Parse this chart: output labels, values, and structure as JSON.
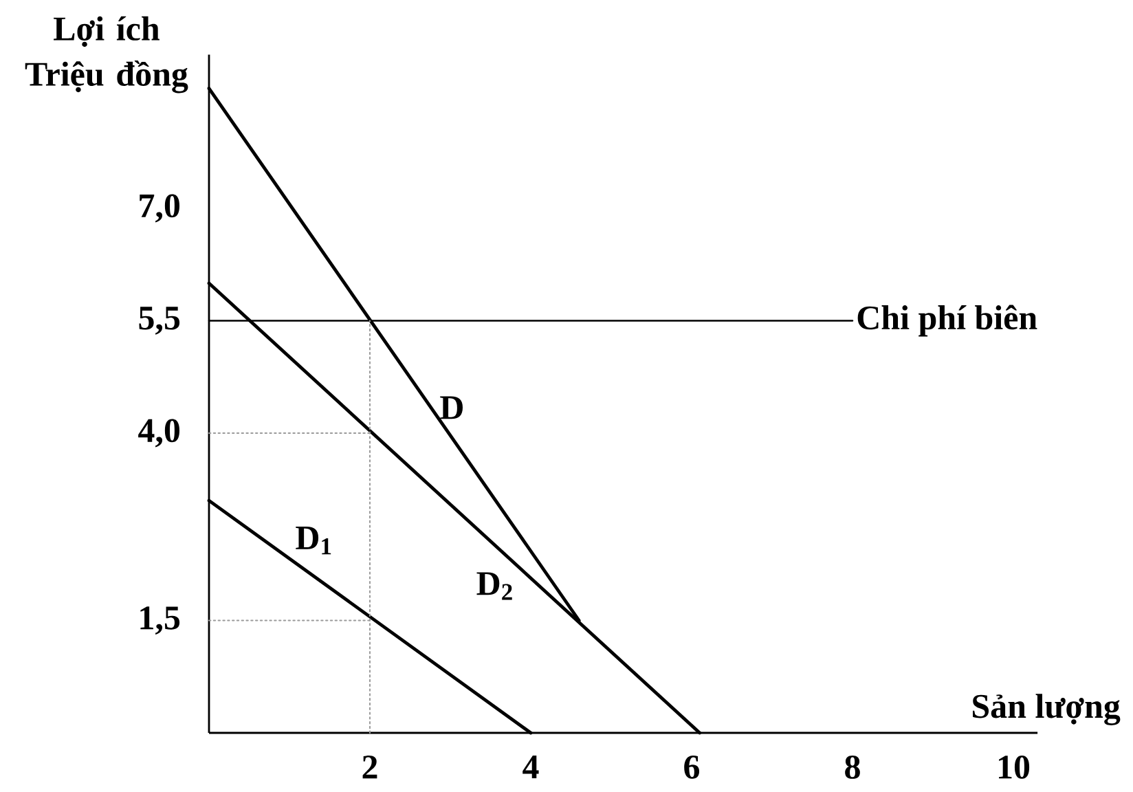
{
  "chart_data": {
    "type": "line",
    "xlabel": "Sản lượng",
    "ylabel": "Lợi ích Triệu đồng",
    "xlim": [
      0,
      10.3
    ],
    "ylim": [
      0,
      9.05
    ],
    "xticks": [
      2,
      4,
      6,
      8,
      10
    ],
    "yticks": [
      {
        "value": 1.5,
        "label": "1,5"
      },
      {
        "value": 4,
        "label": "4,0"
      },
      {
        "value": 5.5,
        "label": "5,5"
      },
      {
        "value": 7,
        "label": "7,0"
      }
    ],
    "series": [
      {
        "name": "D",
        "color": "#000000",
        "x": [
          0,
          4.6
        ],
        "values": [
          8.6,
          1.5
        ]
      },
      {
        "name": "D$_{1}$",
        "color": "#000000",
        "x": [
          0,
          4
        ],
        "values": [
          3.1,
          0
        ]
      },
      {
        "name": "D$_{2}$",
        "color": "#000000",
        "x": [
          0,
          6.1
        ],
        "values": [
          6,
          0
        ]
      },
      {
        "name": "Chi phí biên",
        "color": "#000000",
        "x": [
          0,
          8
        ],
        "values": [
          5.5,
          5.5
        ]
      },
      {
        "color": "#9a9a9a",
        "line_style": "dotted",
        "x": [
          2,
          2
        ],
        "values": [
          0,
          5.5
        ]
      },
      {
        "color": "#9a9a9a",
        "line_style": "dotted",
        "x": [
          0,
          2
        ],
        "values": [
          4,
          4
        ]
      },
      {
        "color": "#9a9a9a",
        "line_style": "dotted",
        "x": [
          0,
          2
        ],
        "values": [
          1.5,
          1.5
        ]
      }
    ],
    "grid": false,
    "legend": false,
    "marker": "none",
    "line_style": "solid"
  }
}
